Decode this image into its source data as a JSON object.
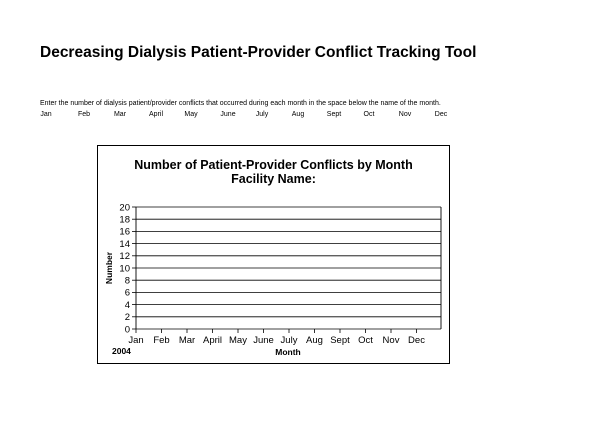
{
  "header": {
    "title": "Decreasing Dialysis Patient-Provider Conflict Tracking Tool",
    "instructions": "Enter the number of dialysis patient/provider conflicts that occurred during each month in the space below the name of the month.",
    "months": [
      "Jan",
      "Feb",
      "Mar",
      "April",
      "May",
      "June",
      "July",
      "Aug",
      "Sept",
      "Oct",
      "Nov",
      "Dec"
    ]
  },
  "chart_data": {
    "type": "line",
    "title": "Number of Patient-Provider Conflicts by Month",
    "subtitle": "Facility Name:",
    "xlabel": "Month",
    "ylabel": "Number",
    "year_label": "2004",
    "categories": [
      "Jan",
      "Feb",
      "Mar",
      "April",
      "May",
      "June",
      "July",
      "Aug",
      "Sept",
      "Oct",
      "Nov",
      "Dec"
    ],
    "yticks": [
      0,
      2,
      4,
      6,
      8,
      10,
      12,
      14,
      16,
      18,
      20
    ],
    "ylim": [
      0,
      20
    ],
    "grid": true,
    "series": []
  }
}
